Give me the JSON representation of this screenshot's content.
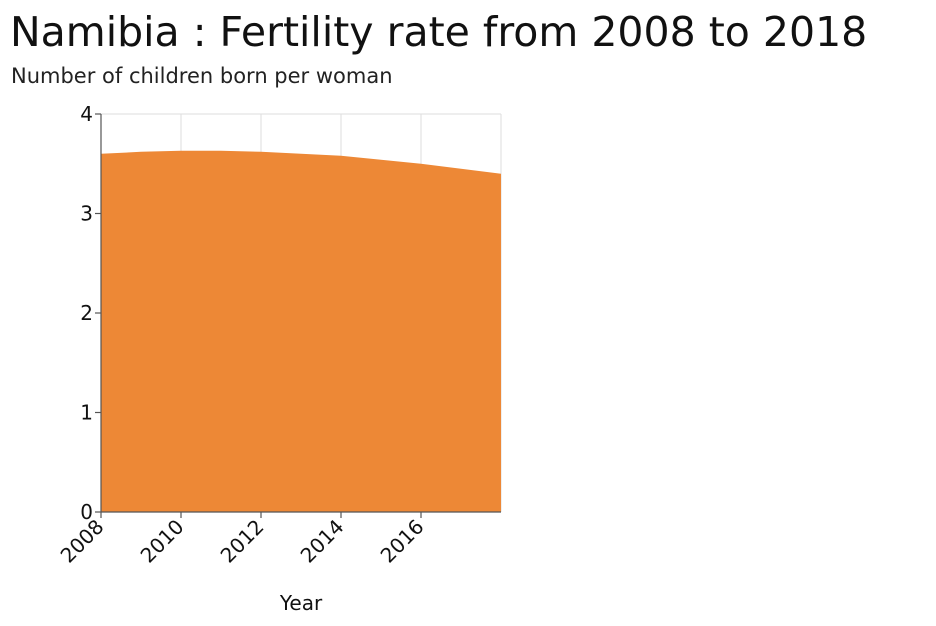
{
  "chart_data": {
    "type": "area",
    "title": "Namibia : Fertility rate from 2008 to 2018",
    "ylabel": "Number of children born per woman",
    "xlabel": "Year",
    "x": [
      2008,
      2009,
      2010,
      2011,
      2012,
      2013,
      2014,
      2015,
      2016,
      2017,
      2018
    ],
    "values": [
      3.6,
      3.62,
      3.63,
      3.63,
      3.62,
      3.6,
      3.58,
      3.54,
      3.5,
      3.45,
      3.4
    ],
    "xlim": [
      2008,
      2018
    ],
    "ylim": [
      0,
      4
    ],
    "xticks": [
      "2008",
      "2010",
      "2012",
      "2014",
      "2016"
    ],
    "yticks": [
      "0",
      "1",
      "2",
      "3",
      "4"
    ],
    "grid": true,
    "colors": {
      "fill": "#ed8836",
      "grid": "#dddddd",
      "axis": "#555555"
    }
  }
}
